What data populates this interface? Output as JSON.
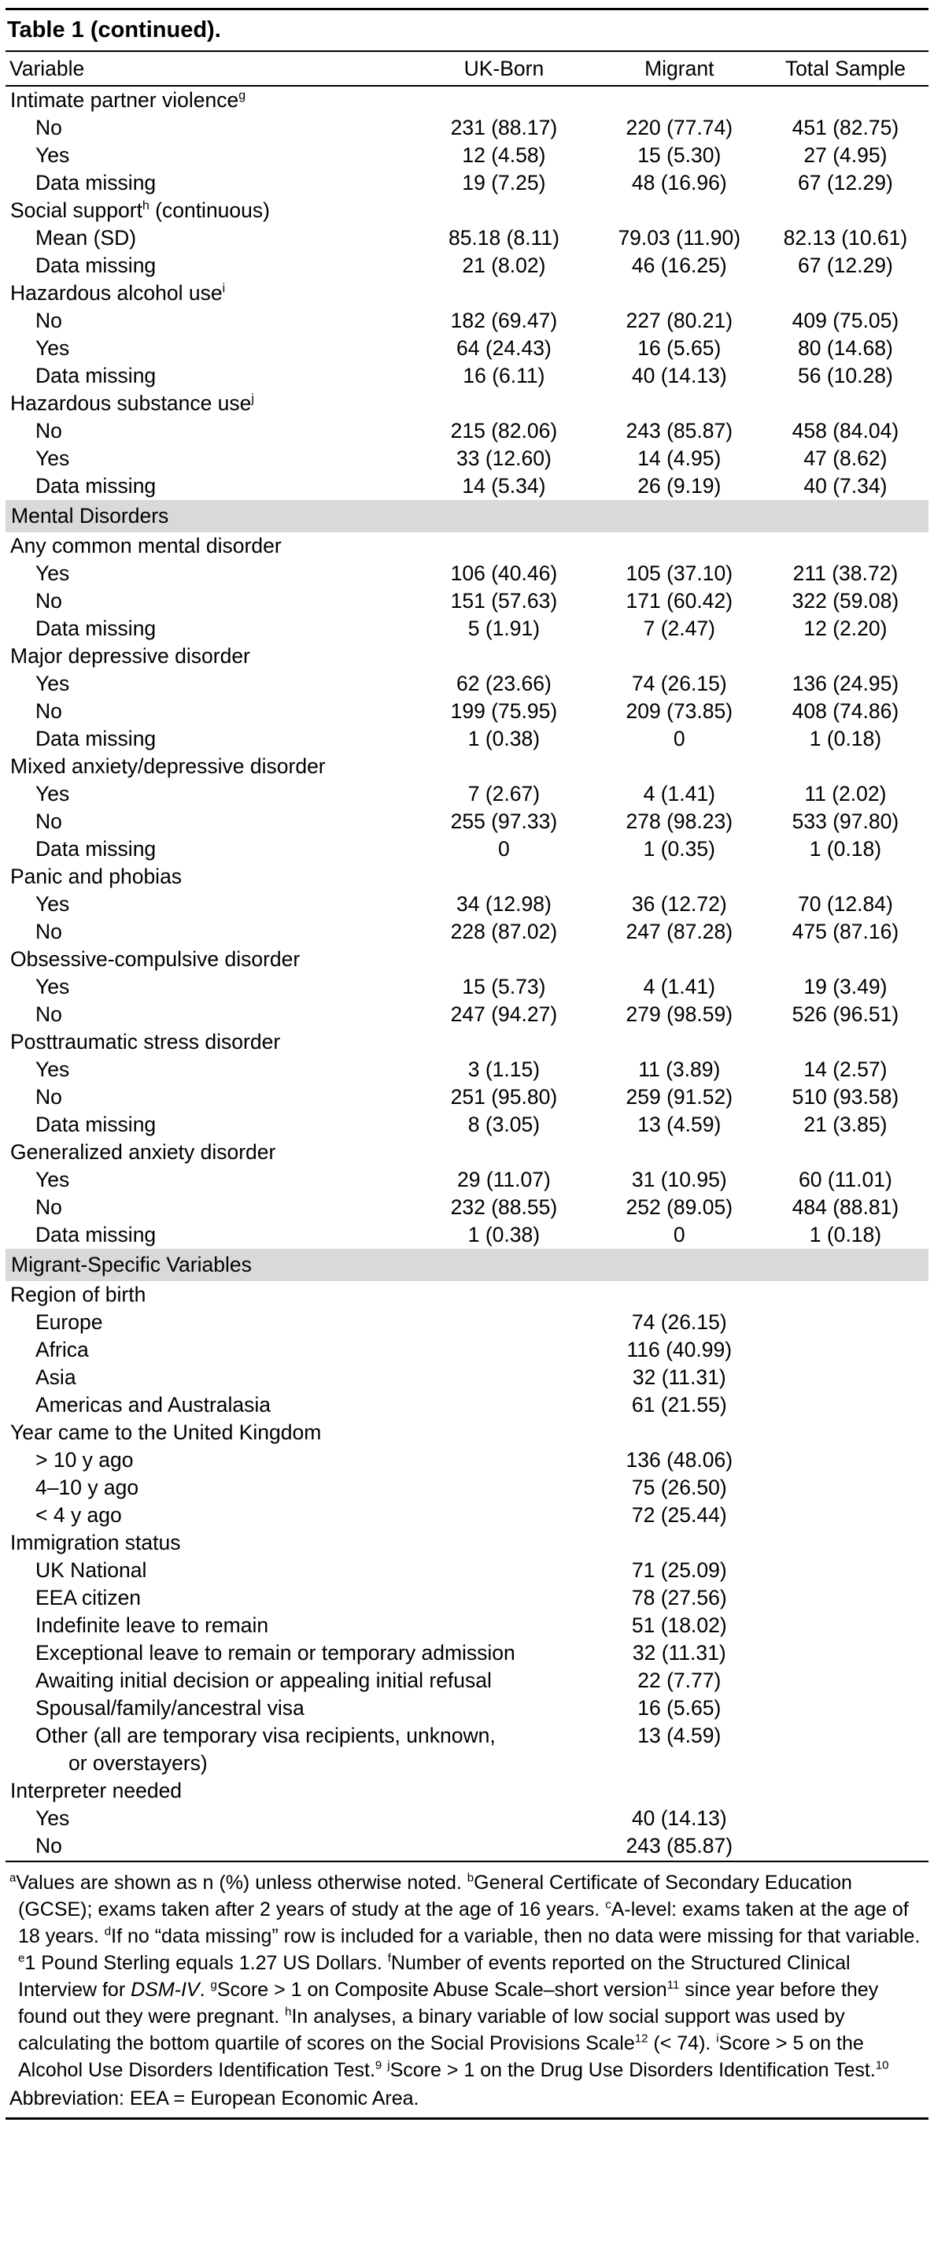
{
  "title": "Table 1 (continued).",
  "colors": {
    "background": "#ffffff",
    "text": "#000000",
    "rule": "#000000",
    "section_band": "#d9d9d9"
  },
  "table": {
    "columns": [
      "Variable",
      "UK-Born",
      "Migrant",
      "Total Sample"
    ],
    "rows": [
      {
        "t": "group",
        "label": "Intimate partner violence^g^"
      },
      {
        "t": "item",
        "label": "No",
        "values": [
          "231 (88.17)",
          "220 (77.74)",
          "451 (82.75)"
        ]
      },
      {
        "t": "item",
        "label": "Yes",
        "values": [
          "12 (4.58)",
          "15 (5.30)",
          "27 (4.95)"
        ]
      },
      {
        "t": "item",
        "label": "Data missing",
        "values": [
          "19 (7.25)",
          "48 (16.96)",
          "67 (12.29)"
        ]
      },
      {
        "t": "group",
        "label": "Social support^h^ (continuous)"
      },
      {
        "t": "item",
        "label": "Mean (SD)",
        "values": [
          "85.18 (8.11)",
          "79.03 (11.90)",
          "82.13 (10.61)"
        ]
      },
      {
        "t": "item",
        "label": "Data missing",
        "values": [
          "21 (8.02)",
          "46 (16.25)",
          "67 (12.29)"
        ]
      },
      {
        "t": "group",
        "label": "Hazardous alcohol use^i^"
      },
      {
        "t": "item",
        "label": "No",
        "values": [
          "182 (69.47)",
          "227 (80.21)",
          "409 (75.05)"
        ]
      },
      {
        "t": "item",
        "label": "Yes",
        "values": [
          "64 (24.43)",
          "16 (5.65)",
          "80 (14.68)"
        ]
      },
      {
        "t": "item",
        "label": "Data missing",
        "values": [
          "16 (6.11)",
          "40 (14.13)",
          "56 (10.28)"
        ]
      },
      {
        "t": "group",
        "label": "Hazardous substance use^j^"
      },
      {
        "t": "item",
        "label": "No",
        "values": [
          "215 (82.06)",
          "243 (85.87)",
          "458 (84.04)"
        ]
      },
      {
        "t": "item",
        "label": "Yes",
        "values": [
          "33 (12.60)",
          "14 (4.95)",
          "47 (8.62)"
        ]
      },
      {
        "t": "item",
        "label": "Data missing",
        "values": [
          "14 (5.34)",
          "26 (9.19)",
          "40 (7.34)"
        ]
      },
      {
        "t": "section",
        "label": "Mental Disorders"
      },
      {
        "t": "group",
        "label": "Any common mental disorder"
      },
      {
        "t": "item",
        "label": "Yes",
        "values": [
          "106 (40.46)",
          "105 (37.10)",
          "211 (38.72)"
        ]
      },
      {
        "t": "item",
        "label": "No",
        "values": [
          "151 (57.63)",
          "171 (60.42)",
          "322 (59.08)"
        ]
      },
      {
        "t": "item",
        "label": "Data missing",
        "values": [
          "5 (1.91)",
          "7 (2.47)",
          "12 (2.20)"
        ]
      },
      {
        "t": "group",
        "label": "Major depressive disorder"
      },
      {
        "t": "item",
        "label": "Yes",
        "values": [
          "62 (23.66)",
          "74 (26.15)",
          "136 (24.95)"
        ]
      },
      {
        "t": "item",
        "label": "No",
        "values": [
          "199 (75.95)",
          "209 (73.85)",
          "408 (74.86)"
        ]
      },
      {
        "t": "item",
        "label": "Data missing",
        "values": [
          "1 (0.38)",
          "0",
          "1 (0.18)"
        ]
      },
      {
        "t": "group",
        "label": "Mixed anxiety/depressive disorder"
      },
      {
        "t": "item",
        "label": "Yes",
        "values": [
          "7 (2.67)",
          "4 (1.41)",
          "11 (2.02)"
        ]
      },
      {
        "t": "item",
        "label": "No",
        "values": [
          "255 (97.33)",
          "278 (98.23)",
          "533 (97.80)"
        ]
      },
      {
        "t": "item",
        "label": "Data missing",
        "values": [
          "0",
          "1 (0.35)",
          "1 (0.18)"
        ]
      },
      {
        "t": "group",
        "label": "Panic and phobias"
      },
      {
        "t": "item",
        "label": "Yes",
        "values": [
          "34 (12.98)",
          "36 (12.72)",
          "70 (12.84)"
        ]
      },
      {
        "t": "item",
        "label": "No",
        "values": [
          "228 (87.02)",
          "247 (87.28)",
          "475 (87.16)"
        ]
      },
      {
        "t": "group",
        "label": "Obsessive-compulsive disorder"
      },
      {
        "t": "item",
        "label": "Yes",
        "values": [
          "15 (5.73)",
          "4 (1.41)",
          "19 (3.49)"
        ]
      },
      {
        "t": "item",
        "label": "No",
        "values": [
          "247 (94.27)",
          "279 (98.59)",
          "526 (96.51)"
        ]
      },
      {
        "t": "group",
        "label": "Posttraumatic stress disorder"
      },
      {
        "t": "item",
        "label": "Yes",
        "values": [
          "3 (1.15)",
          "11 (3.89)",
          "14 (2.57)"
        ]
      },
      {
        "t": "item",
        "label": "No",
        "values": [
          "251 (95.80)",
          "259 (91.52)",
          "510 (93.58)"
        ]
      },
      {
        "t": "item",
        "label": "Data missing",
        "values": [
          "8 (3.05)",
          "13 (4.59)",
          "21 (3.85)"
        ]
      },
      {
        "t": "group",
        "label": "Generalized anxiety disorder"
      },
      {
        "t": "item",
        "label": "Yes",
        "values": [
          "29 (11.07)",
          "31 (10.95)",
          "60 (11.01)"
        ]
      },
      {
        "t": "item",
        "label": "No",
        "values": [
          "232 (88.55)",
          "252 (89.05)",
          "484 (88.81)"
        ]
      },
      {
        "t": "item",
        "label": "Data missing",
        "values": [
          "1 (0.38)",
          "0",
          "1 (0.18)"
        ]
      },
      {
        "t": "section",
        "label": "Migrant-Specific Variables"
      },
      {
        "t": "group",
        "label": "Region of birth"
      },
      {
        "t": "item",
        "label": "Europe",
        "values": [
          "",
          "74 (26.15)",
          ""
        ]
      },
      {
        "t": "item",
        "label": "Africa",
        "values": [
          "",
          "116 (40.99)",
          ""
        ]
      },
      {
        "t": "item",
        "label": "Asia",
        "values": [
          "",
          "32 (11.31)",
          ""
        ]
      },
      {
        "t": "item",
        "label": "Americas and Australasia",
        "values": [
          "",
          "61 (21.55)",
          ""
        ]
      },
      {
        "t": "group",
        "label": "Year came to the United Kingdom"
      },
      {
        "t": "item",
        "label": "> 10 y ago",
        "values": [
          "",
          "136 (48.06)",
          ""
        ]
      },
      {
        "t": "item",
        "label": "4–10 y ago",
        "values": [
          "",
          "75 (26.50)",
          ""
        ]
      },
      {
        "t": "item",
        "label": "< 4 y ago",
        "values": [
          "",
          "72 (25.44)",
          ""
        ]
      },
      {
        "t": "group",
        "label": "Immigration status"
      },
      {
        "t": "item",
        "label": "UK National",
        "values": [
          "",
          "71 (25.09)",
          ""
        ]
      },
      {
        "t": "item",
        "label": "EEA citizen",
        "values": [
          "",
          "78 (27.56)",
          ""
        ]
      },
      {
        "t": "item",
        "label": "Indefinite leave to remain",
        "values": [
          "",
          "51 (18.02)",
          ""
        ]
      },
      {
        "t": "item",
        "label": "Exceptional leave to remain or temporary admission",
        "values": [
          "",
          "32 (11.31)",
          ""
        ]
      },
      {
        "t": "item",
        "label": "Awaiting initial decision or appealing initial refusal",
        "values": [
          "",
          "22 (7.77)",
          ""
        ]
      },
      {
        "t": "item",
        "label": "Spousal/family/ancestral visa",
        "values": [
          "",
          "16 (5.65)",
          ""
        ]
      },
      {
        "t": "item",
        "label": "Other (all are temporary visa recipients, unknown,",
        "label2": "or overstayers)",
        "values": [
          "",
          "13 (4.59)",
          ""
        ]
      },
      {
        "t": "group",
        "label": "Interpreter needed"
      },
      {
        "t": "item",
        "label": "Yes",
        "values": [
          "",
          "40 (14.13)",
          ""
        ]
      },
      {
        "t": "item",
        "label": "No",
        "values": [
          "",
          "243 (85.87)",
          ""
        ]
      }
    ]
  },
  "footnotes": {
    "text": "^a^Values are shown as n (%) unless otherwise noted. ^b^General Certificate of Secondary Education (GCSE); exams taken after 2 years of study at the age of 16 years. ^c^A-level: exams taken at the age of 18 years. ^d^If no “data missing” row is included for a variable, then no data were missing for that variable. ^e^1 Pound Sterling equals 1.27 US Dollars. ^f^Number of events reported on the Structured Clinical Interview for ~DSM-IV~. ^g^Score > 1 on Composite Abuse Scale–short version^11^ since year before they found out they were pregnant. ^h^In analyses, a binary variable of low social support was used by calculating the bottom quartile of scores on the Social Provisions Scale^12^ (< 74). ^i^Score > 5 on the Alcohol Use Disorders Identification Test.^9^ ^j^Score > 1 on the Drug Use Disorders Identification Test.^10^"
  },
  "abbreviation": "Abbreviation: EEA = European Economic Area."
}
